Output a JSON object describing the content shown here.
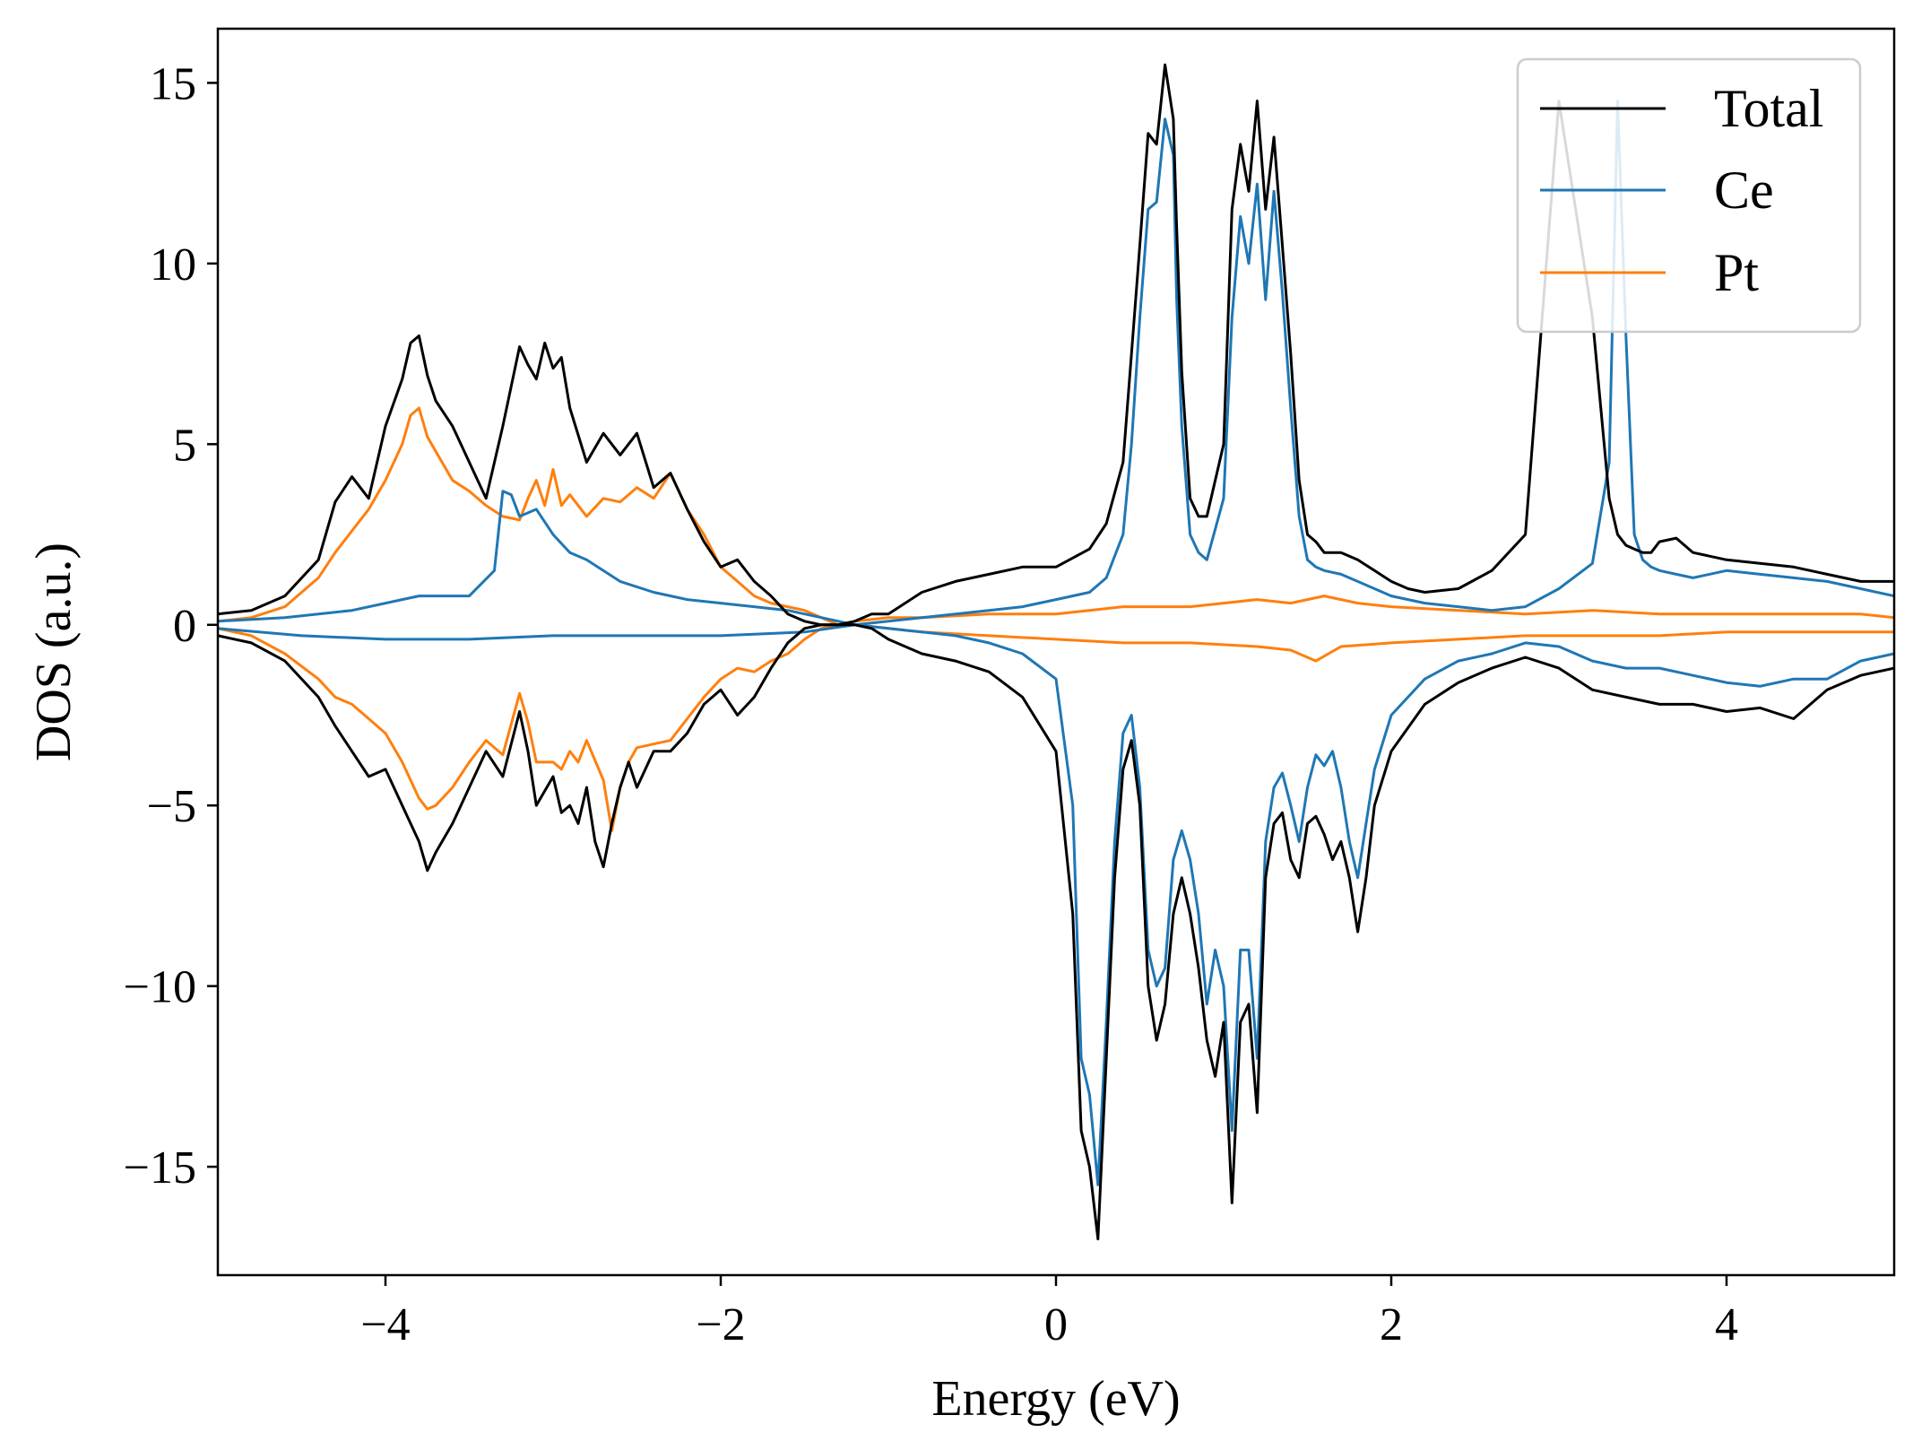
{
  "chart_data": {
    "type": "line",
    "xlabel": "Energy (eV)",
    "ylabel": "DOS (a.u.)",
    "xlim": [
      -5,
      5
    ],
    "ylim": [
      -18,
      16.5
    ],
    "xticks": [
      -4,
      -2,
      0,
      2,
      4
    ],
    "xtick_labels": [
      "−4",
      "−2",
      "0",
      "2",
      "4"
    ],
    "yticks": [
      15,
      10,
      5,
      0,
      -5,
      -10,
      -15
    ],
    "ytick_labels": [
      "15",
      "10",
      "5",
      "0",
      "−5",
      "−10",
      "−15"
    ],
    "grid": false,
    "legend_position": "top-right",
    "legend": [
      "Total",
      "Ce",
      "Pt"
    ],
    "colors": {
      "Total": "#000000",
      "Ce": "#1f77b4",
      "Pt": "#ff7f0e"
    },
    "series": [
      {
        "name": "Total",
        "color": "#000000",
        "part": "spin-up",
        "x": [
          -5.0,
          -4.8,
          -4.6,
          -4.4,
          -4.3,
          -4.2,
          -4.1,
          -4.0,
          -3.9,
          -3.85,
          -3.8,
          -3.75,
          -3.7,
          -3.6,
          -3.5,
          -3.4,
          -3.3,
          -3.2,
          -3.15,
          -3.1,
          -3.05,
          -3.0,
          -2.95,
          -2.9,
          -2.8,
          -2.7,
          -2.6,
          -2.5,
          -2.4,
          -2.3,
          -2.2,
          -2.1,
          -2.0,
          -1.9,
          -1.8,
          -1.7,
          -1.6,
          -1.5,
          -1.4,
          -1.3,
          -1.2,
          -1.1,
          -1.0,
          -0.9,
          -0.8,
          -0.6,
          -0.4,
          -0.2,
          0.0,
          0.2,
          0.3,
          0.4,
          0.45,
          0.5,
          0.55,
          0.6,
          0.65,
          0.7,
          0.72,
          0.75,
          0.8,
          0.85,
          0.9,
          1.0,
          1.05,
          1.1,
          1.15,
          1.2,
          1.25,
          1.3,
          1.35,
          1.4,
          1.45,
          1.5,
          1.55,
          1.6,
          1.7,
          1.8,
          1.9,
          2.0,
          2.1,
          2.2,
          2.4,
          2.6,
          2.8,
          3.0,
          3.2,
          3.3,
          3.35,
          3.4,
          3.45,
          3.5,
          3.55,
          3.6,
          3.7,
          3.8,
          4.0,
          4.2,
          4.4,
          4.6,
          4.8,
          5.0
        ],
        "y": [
          0.3,
          0.4,
          0.8,
          1.8,
          3.4,
          4.1,
          3.5,
          5.5,
          6.8,
          7.8,
          8.0,
          6.9,
          6.2,
          5.5,
          4.5,
          3.5,
          5.5,
          7.7,
          7.2,
          6.8,
          7.8,
          7.1,
          7.4,
          6.0,
          4.5,
          5.3,
          4.7,
          5.3,
          3.8,
          4.2,
          3.2,
          2.3,
          1.6,
          1.8,
          1.2,
          0.8,
          0.3,
          0.1,
          0.0,
          0.0,
          0.1,
          0.3,
          0.3,
          0.6,
          0.9,
          1.2,
          1.4,
          1.6,
          1.6,
          2.1,
          2.8,
          4.5,
          7.5,
          10.5,
          13.6,
          13.3,
          15.5,
          14.0,
          11.0,
          7.0,
          3.5,
          3.0,
          3.0,
          5.0,
          11.5,
          13.3,
          12.0,
          14.5,
          11.5,
          13.5,
          10.5,
          7.5,
          4.0,
          2.5,
          2.3,
          2.0,
          2.0,
          1.8,
          1.5,
          1.2,
          1.0,
          0.9,
          1.0,
          1.5,
          2.5,
          14.5,
          8.5,
          3.5,
          2.5,
          2.2,
          2.1,
          2.0,
          2.0,
          2.3,
          2.4,
          2.0,
          1.8,
          1.7,
          1.6,
          1.4,
          1.2,
          1.2
        ]
      },
      {
        "name": "Total",
        "color": "#000000",
        "part": "spin-down",
        "x": [
          -5.0,
          -4.8,
          -4.6,
          -4.4,
          -4.3,
          -4.2,
          -4.1,
          -4.0,
          -3.9,
          -3.8,
          -3.75,
          -3.7,
          -3.6,
          -3.5,
          -3.4,
          -3.3,
          -3.2,
          -3.15,
          -3.1,
          -3.0,
          -2.95,
          -2.9,
          -2.85,
          -2.8,
          -2.75,
          -2.7,
          -2.65,
          -2.6,
          -2.55,
          -2.5,
          -2.4,
          -2.3,
          -2.2,
          -2.1,
          -2.0,
          -1.9,
          -1.8,
          -1.7,
          -1.6,
          -1.5,
          -1.4,
          -1.3,
          -1.2,
          -1.1,
          -1.0,
          -0.8,
          -0.6,
          -0.4,
          -0.2,
          0.0,
          0.1,
          0.15,
          0.2,
          0.25,
          0.3,
          0.35,
          0.4,
          0.45,
          0.5,
          0.55,
          0.6,
          0.65,
          0.7,
          0.75,
          0.8,
          0.85,
          0.9,
          0.95,
          1.0,
          1.05,
          1.1,
          1.15,
          1.2,
          1.25,
          1.3,
          1.35,
          1.4,
          1.45,
          1.5,
          1.55,
          1.6,
          1.65,
          1.7,
          1.75,
          1.8,
          1.85,
          1.9,
          2.0,
          2.2,
          2.4,
          2.6,
          2.8,
          3.0,
          3.2,
          3.4,
          3.6,
          3.8,
          4.0,
          4.2,
          4.4,
          4.6,
          4.8,
          5.0
        ],
        "y": [
          -0.3,
          -0.5,
          -1.0,
          -2.0,
          -2.8,
          -3.5,
          -4.2,
          -4.0,
          -5.0,
          -6.0,
          -6.8,
          -6.3,
          -5.5,
          -4.5,
          -3.5,
          -4.2,
          -2.4,
          -3.5,
          -5.0,
          -4.2,
          -5.2,
          -5.0,
          -5.5,
          -4.5,
          -6.0,
          -6.7,
          -5.5,
          -4.5,
          -3.8,
          -4.5,
          -3.5,
          -3.5,
          -3.0,
          -2.2,
          -1.8,
          -2.5,
          -2.0,
          -1.2,
          -0.5,
          -0.1,
          0.0,
          0.0,
          0.0,
          -0.1,
          -0.4,
          -0.8,
          -1.0,
          -1.3,
          -2.0,
          -3.5,
          -8.0,
          -14.0,
          -15.0,
          -17.0,
          -12.0,
          -7.0,
          -4.0,
          -3.2,
          -5.0,
          -10.0,
          -11.5,
          -10.5,
          -8.0,
          -7.0,
          -8.0,
          -9.5,
          -11.5,
          -12.5,
          -11.0,
          -16.0,
          -11.0,
          -10.5,
          -13.5,
          -7.0,
          -5.5,
          -5.2,
          -6.5,
          -7.0,
          -5.5,
          -5.3,
          -5.8,
          -6.5,
          -6.0,
          -7.0,
          -8.5,
          -7.0,
          -5.0,
          -3.5,
          -2.2,
          -1.6,
          -1.2,
          -0.9,
          -1.2,
          -1.8,
          -2.0,
          -2.2,
          -2.2,
          -2.4,
          -2.3,
          -2.6,
          -1.8,
          -1.4,
          -1.2
        ]
      },
      {
        "name": "Ce",
        "color": "#1f77b4",
        "part": "spin-up",
        "x": [
          -5.0,
          -4.6,
          -4.2,
          -3.9,
          -3.8,
          -3.5,
          -3.35,
          -3.3,
          -3.25,
          -3.2,
          -3.1,
          -3.0,
          -2.9,
          -2.8,
          -2.6,
          -2.4,
          -2.2,
          -2.0,
          -1.8,
          -1.6,
          -1.4,
          -1.2,
          -1.0,
          -0.8,
          -0.6,
          -0.4,
          -0.2,
          0.0,
          0.2,
          0.3,
          0.4,
          0.45,
          0.5,
          0.55,
          0.6,
          0.65,
          0.7,
          0.72,
          0.75,
          0.8,
          0.85,
          0.9,
          1.0,
          1.05,
          1.1,
          1.15,
          1.2,
          1.25,
          1.3,
          1.35,
          1.4,
          1.45,
          1.5,
          1.55,
          1.6,
          1.7,
          1.8,
          1.9,
          2.0,
          2.2,
          2.4,
          2.6,
          2.8,
          3.0,
          3.2,
          3.3,
          3.35,
          3.4,
          3.45,
          3.5,
          3.55,
          3.6,
          3.7,
          3.8,
          4.0,
          4.2,
          4.4,
          4.6,
          4.8,
          5.0
        ],
        "y": [
          0.1,
          0.2,
          0.4,
          0.7,
          0.8,
          0.8,
          1.5,
          3.7,
          3.6,
          3.0,
          3.2,
          2.5,
          2.0,
          1.8,
          1.2,
          0.9,
          0.7,
          0.6,
          0.5,
          0.4,
          0.2,
          0.0,
          0.1,
          0.2,
          0.3,
          0.4,
          0.5,
          0.7,
          0.9,
          1.3,
          2.5,
          5.0,
          8.5,
          11.5,
          11.7,
          14.0,
          13.0,
          9.0,
          5.5,
          2.5,
          2.0,
          1.8,
          3.5,
          8.5,
          11.3,
          10.0,
          12.2,
          9.0,
          12.0,
          9.2,
          6.0,
          3.0,
          1.8,
          1.6,
          1.5,
          1.4,
          1.2,
          1.0,
          0.8,
          0.6,
          0.5,
          0.4,
          0.5,
          1.0,
          1.7,
          4.5,
          14.5,
          8.0,
          2.5,
          1.8,
          1.6,
          1.5,
          1.4,
          1.3,
          1.5,
          1.4,
          1.3,
          1.2,
          1.0,
          0.8
        ]
      },
      {
        "name": "Ce",
        "color": "#1f77b4",
        "part": "spin-down",
        "x": [
          -5.0,
          -4.5,
          -4.0,
          -3.5,
          -3.0,
          -2.5,
          -2.0,
          -1.5,
          -1.2,
          -1.0,
          -0.8,
          -0.6,
          -0.4,
          -0.2,
          0.0,
          0.1,
          0.15,
          0.2,
          0.25,
          0.3,
          0.35,
          0.4,
          0.45,
          0.5,
          0.55,
          0.6,
          0.65,
          0.7,
          0.75,
          0.8,
          0.85,
          0.9,
          0.95,
          1.0,
          1.05,
          1.1,
          1.15,
          1.2,
          1.25,
          1.3,
          1.35,
          1.4,
          1.45,
          1.5,
          1.55,
          1.6,
          1.65,
          1.7,
          1.75,
          1.8,
          1.85,
          1.9,
          2.0,
          2.2,
          2.4,
          2.6,
          2.8,
          3.0,
          3.2,
          3.4,
          3.6,
          3.8,
          4.0,
          4.2,
          4.4,
          4.6,
          4.8,
          5.0
        ],
        "y": [
          -0.1,
          -0.3,
          -0.4,
          -0.4,
          -0.3,
          -0.3,
          -0.3,
          -0.2,
          0.0,
          -0.1,
          -0.2,
          -0.3,
          -0.5,
          -0.8,
          -1.5,
          -5.0,
          -12.0,
          -13.0,
          -15.5,
          -11.0,
          -6.0,
          -3.0,
          -2.5,
          -4.5,
          -9.0,
          -10.0,
          -9.5,
          -6.5,
          -5.7,
          -6.5,
          -8.0,
          -10.5,
          -9.0,
          -10.0,
          -14.0,
          -9.0,
          -9.0,
          -12.0,
          -6.0,
          -4.5,
          -4.1,
          -5.0,
          -6.0,
          -4.5,
          -3.6,
          -3.9,
          -3.5,
          -4.5,
          -6.0,
          -7.0,
          -5.5,
          -4.0,
          -2.5,
          -1.5,
          -1.0,
          -0.8,
          -0.5,
          -0.6,
          -1.0,
          -1.2,
          -1.2,
          -1.4,
          -1.6,
          -1.7,
          -1.5,
          -1.5,
          -1.0,
          -0.8
        ]
      },
      {
        "name": "Pt",
        "color": "#ff7f0e",
        "part": "spin-up",
        "x": [
          -5.0,
          -4.8,
          -4.6,
          -4.4,
          -4.3,
          -4.2,
          -4.1,
          -4.0,
          -3.9,
          -3.85,
          -3.8,
          -3.75,
          -3.7,
          -3.6,
          -3.5,
          -3.4,
          -3.3,
          -3.2,
          -3.15,
          -3.1,
          -3.05,
          -3.0,
          -2.95,
          -2.9,
          -2.8,
          -2.7,
          -2.6,
          -2.5,
          -2.4,
          -2.3,
          -2.2,
          -2.1,
          -2.0,
          -1.9,
          -1.8,
          -1.7,
          -1.6,
          -1.5,
          -1.4,
          -1.3,
          -1.2,
          -1.0,
          -0.8,
          -0.4,
          0.0,
          0.4,
          0.6,
          0.8,
          1.0,
          1.2,
          1.4,
          1.6,
          1.8,
          2.0,
          2.4,
          2.8,
          3.2,
          3.6,
          4.0,
          4.4,
          4.8,
          5.0
        ],
        "y": [
          0.1,
          0.2,
          0.5,
          1.3,
          2.0,
          2.6,
          3.2,
          4.0,
          5.0,
          5.8,
          6.0,
          5.2,
          4.8,
          4.0,
          3.7,
          3.3,
          3.0,
          2.9,
          3.5,
          4.0,
          3.3,
          4.3,
          3.3,
          3.6,
          3.0,
          3.5,
          3.4,
          3.8,
          3.5,
          4.2,
          3.2,
          2.5,
          1.6,
          1.2,
          0.8,
          0.6,
          0.5,
          0.4,
          0.2,
          0.0,
          0.1,
          0.2,
          0.2,
          0.3,
          0.3,
          0.5,
          0.5,
          0.5,
          0.6,
          0.7,
          0.6,
          0.8,
          0.6,
          0.5,
          0.4,
          0.3,
          0.4,
          0.3,
          0.3,
          0.3,
          0.3,
          0.2
        ]
      },
      {
        "name": "Pt",
        "color": "#ff7f0e",
        "part": "spin-down",
        "x": [
          -5.0,
          -4.8,
          -4.6,
          -4.4,
          -4.3,
          -4.2,
          -4.1,
          -4.0,
          -3.9,
          -3.8,
          -3.75,
          -3.7,
          -3.6,
          -3.5,
          -3.4,
          -3.3,
          -3.2,
          -3.15,
          -3.1,
          -3.0,
          -2.95,
          -2.9,
          -2.85,
          -2.8,
          -2.7,
          -2.65,
          -2.6,
          -2.55,
          -2.5,
          -2.4,
          -2.3,
          -2.2,
          -2.1,
          -2.0,
          -1.9,
          -1.8,
          -1.7,
          -1.6,
          -1.5,
          -1.4,
          -1.3,
          -1.2,
          -1.0,
          -0.8,
          -0.4,
          0.0,
          0.4,
          0.8,
          1.2,
          1.4,
          1.55,
          1.7,
          2.0,
          2.4,
          2.8,
          3.2,
          3.6,
          4.0,
          4.4,
          4.8,
          5.0
        ],
        "y": [
          -0.1,
          -0.3,
          -0.8,
          -1.5,
          -2.0,
          -2.2,
          -2.6,
          -3.0,
          -3.8,
          -4.8,
          -5.1,
          -5.0,
          -4.5,
          -3.8,
          -3.2,
          -3.6,
          -1.9,
          -2.7,
          -3.8,
          -3.8,
          -4.0,
          -3.5,
          -3.8,
          -3.2,
          -4.3,
          -5.7,
          -4.5,
          -3.8,
          -3.4,
          -3.3,
          -3.2,
          -2.6,
          -2.0,
          -1.5,
          -1.2,
          -1.3,
          -1.0,
          -0.8,
          -0.4,
          -0.1,
          0.0,
          0.0,
          -0.1,
          -0.2,
          -0.3,
          -0.4,
          -0.5,
          -0.5,
          -0.6,
          -0.7,
          -1.0,
          -0.6,
          -0.5,
          -0.4,
          -0.3,
          -0.3,
          -0.3,
          -0.2,
          -0.2,
          -0.2,
          -0.2
        ]
      }
    ]
  }
}
